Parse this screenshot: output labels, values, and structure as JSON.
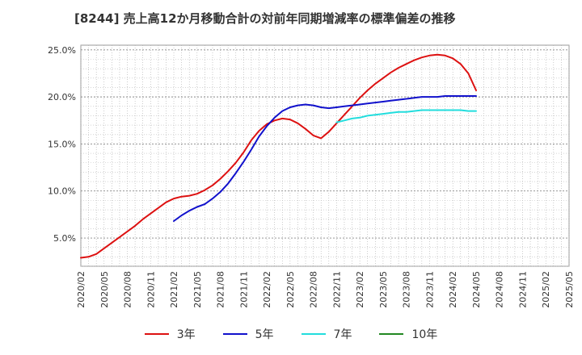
{
  "chart_data": {
    "type": "line",
    "title": "[8244]  売上高12か月移動合計の対前年同期増減率の標準偏差の推移",
    "xlabel": "",
    "ylabel": "",
    "y_ticks": [
      "5.0%",
      "10.0%",
      "15.0%",
      "20.0%",
      "25.0%"
    ],
    "y_tick_values": [
      5,
      10,
      15,
      20,
      25
    ],
    "ylim": [
      2.0,
      25.5
    ],
    "x_ticks": [
      "2020/02",
      "2020/05",
      "2020/08",
      "2020/11",
      "2021/02",
      "2021/05",
      "2021/08",
      "2021/11",
      "2022/02",
      "2022/05",
      "2022/08",
      "2022/11",
      "2023/02",
      "2023/05",
      "2023/08",
      "2023/11",
      "2024/02",
      "2024/05",
      "2024/08",
      "2024/11",
      "2025/02",
      "2025/05"
    ],
    "xlim": [
      "2020/02",
      "2025/05"
    ],
    "grid": true,
    "legend_position": "bottom",
    "series": [
      {
        "name": "3年",
        "color": "#dd1111",
        "points": [
          [
            "2020/02",
            2.9
          ],
          [
            "2020/03",
            3.0
          ],
          [
            "2020/04",
            3.3
          ],
          [
            "2020/05",
            3.9
          ],
          [
            "2020/06",
            4.5
          ],
          [
            "2020/07",
            5.1
          ],
          [
            "2020/08",
            5.7
          ],
          [
            "2020/09",
            6.3
          ],
          [
            "2020/10",
            7.0
          ],
          [
            "2020/11",
            7.6
          ],
          [
            "2020/12",
            8.2
          ],
          [
            "2021/01",
            8.8
          ],
          [
            "2021/02",
            9.2
          ],
          [
            "2021/03",
            9.4
          ],
          [
            "2021/04",
            9.5
          ],
          [
            "2021/05",
            9.7
          ],
          [
            "2021/06",
            10.1
          ],
          [
            "2021/07",
            10.6
          ],
          [
            "2021/08",
            11.3
          ],
          [
            "2021/09",
            12.1
          ],
          [
            "2021/10",
            13.0
          ],
          [
            "2021/11",
            14.1
          ],
          [
            "2021/12",
            15.4
          ],
          [
            "2022/01",
            16.4
          ],
          [
            "2022/02",
            17.1
          ],
          [
            "2022/03",
            17.5
          ],
          [
            "2022/04",
            17.7
          ],
          [
            "2022/05",
            17.6
          ],
          [
            "2022/06",
            17.2
          ],
          [
            "2022/07",
            16.6
          ],
          [
            "2022/08",
            15.9
          ],
          [
            "2022/09",
            15.6
          ],
          [
            "2022/10",
            16.3
          ],
          [
            "2022/11",
            17.2
          ],
          [
            "2022/12",
            18.1
          ],
          [
            "2023/01",
            19.0
          ],
          [
            "2023/02",
            19.9
          ],
          [
            "2023/03",
            20.7
          ],
          [
            "2023/04",
            21.4
          ],
          [
            "2023/05",
            22.0
          ],
          [
            "2023/06",
            22.6
          ],
          [
            "2023/07",
            23.1
          ],
          [
            "2023/08",
            23.5
          ],
          [
            "2023/09",
            23.9
          ],
          [
            "2023/10",
            24.2
          ],
          [
            "2023/11",
            24.4
          ],
          [
            "2023/12",
            24.5
          ],
          [
            "2024/01",
            24.4
          ],
          [
            "2024/02",
            24.1
          ],
          [
            "2024/03",
            23.5
          ],
          [
            "2024/04",
            22.5
          ],
          [
            "2024/05",
            20.7
          ]
        ]
      },
      {
        "name": "5年",
        "color": "#1111cc",
        "points": [
          [
            "2021/02",
            6.8
          ],
          [
            "2021/03",
            7.4
          ],
          [
            "2021/04",
            7.9
          ],
          [
            "2021/05",
            8.3
          ],
          [
            "2021/06",
            8.6
          ],
          [
            "2021/07",
            9.2
          ],
          [
            "2021/08",
            9.9
          ],
          [
            "2021/09",
            10.8
          ],
          [
            "2021/10",
            11.9
          ],
          [
            "2021/11",
            13.1
          ],
          [
            "2021/12",
            14.4
          ],
          [
            "2022/01",
            15.8
          ],
          [
            "2022/02",
            16.9
          ],
          [
            "2022/03",
            17.8
          ],
          [
            "2022/04",
            18.5
          ],
          [
            "2022/05",
            18.9
          ],
          [
            "2022/06",
            19.1
          ],
          [
            "2022/07",
            19.2
          ],
          [
            "2022/08",
            19.1
          ],
          [
            "2022/09",
            18.9
          ],
          [
            "2022/10",
            18.8
          ],
          [
            "2022/11",
            18.9
          ],
          [
            "2022/12",
            19.0
          ],
          [
            "2023/01",
            19.1
          ],
          [
            "2023/02",
            19.2
          ],
          [
            "2023/03",
            19.3
          ],
          [
            "2023/04",
            19.4
          ],
          [
            "2023/05",
            19.5
          ],
          [
            "2023/06",
            19.6
          ],
          [
            "2023/07",
            19.7
          ],
          [
            "2023/08",
            19.8
          ],
          [
            "2023/09",
            19.9
          ],
          [
            "2023/10",
            20.0
          ],
          [
            "2023/11",
            20.0
          ],
          [
            "2023/12",
            20.0
          ],
          [
            "2024/01",
            20.1
          ],
          [
            "2024/02",
            20.1
          ],
          [
            "2024/03",
            20.1
          ],
          [
            "2024/04",
            20.1
          ],
          [
            "2024/05",
            20.1
          ]
        ]
      },
      {
        "name": "7年",
        "color": "#22dddd",
        "points": [
          [
            "2022/11",
            17.3
          ],
          [
            "2022/12",
            17.5
          ],
          [
            "2023/01",
            17.7
          ],
          [
            "2023/02",
            17.8
          ],
          [
            "2023/03",
            18.0
          ],
          [
            "2023/04",
            18.1
          ],
          [
            "2023/05",
            18.2
          ],
          [
            "2023/06",
            18.3
          ],
          [
            "2023/07",
            18.4
          ],
          [
            "2023/08",
            18.4
          ],
          [
            "2023/09",
            18.5
          ],
          [
            "2023/10",
            18.6
          ],
          [
            "2023/11",
            18.6
          ],
          [
            "2023/12",
            18.6
          ],
          [
            "2024/01",
            18.6
          ],
          [
            "2024/02",
            18.6
          ],
          [
            "2024/03",
            18.6
          ],
          [
            "2024/04",
            18.5
          ],
          [
            "2024/05",
            18.5
          ]
        ]
      },
      {
        "name": "10年",
        "color": "#228822",
        "points": []
      }
    ]
  }
}
